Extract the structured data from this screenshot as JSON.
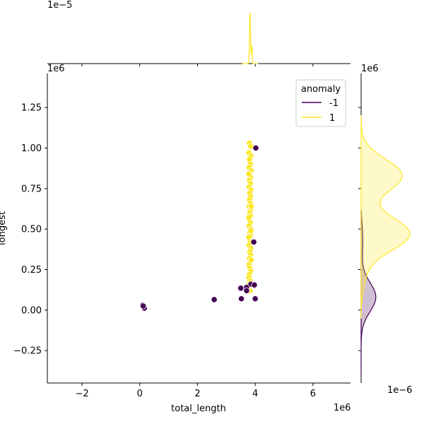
{
  "chart_data": {
    "type": "scatter",
    "subtype": "jointplot",
    "xlabel": "total_length",
    "ylabel": "longest",
    "x_offset_text": "1e6",
    "y_offset_text": "1e6",
    "top_marginal_offset_text": "1e−5",
    "right_marginal_offset_text": "1e6",
    "right_marginal_x_offset_text": "1e−6",
    "xlim": [
      -3.2,
      7.3
    ],
    "ylim": [
      -0.45,
      1.46
    ],
    "xticks": [
      -2,
      0,
      2,
      4,
      6
    ],
    "xtick_labels": [
      "−2",
      "0",
      "2",
      "4",
      "6"
    ],
    "yticks": [
      -0.25,
      0.0,
      0.25,
      0.5,
      0.75,
      1.0,
      1.25
    ],
    "ytick_labels": [
      "−0.25",
      "0.00",
      "0.25",
      "0.50",
      "0.75",
      "1.00",
      "1.25"
    ],
    "legend": {
      "title": "anomaly",
      "placement": "top-right",
      "entries": [
        {
          "label": "-1",
          "color": "#440154"
        },
        {
          "label": "1",
          "color": "#fde725"
        }
      ]
    },
    "colors": {
      "anomaly_-1": "#440154",
      "anomaly_1": "#fde725"
    },
    "series": [
      {
        "name": "1",
        "color": "#fde725",
        "points": [
          [
            3.8,
            1.03
          ],
          [
            3.84,
            1.01
          ],
          [
            3.78,
            0.97
          ],
          [
            3.85,
            0.95
          ],
          [
            3.8,
            0.93
          ],
          [
            3.83,
            0.9
          ],
          [
            3.79,
            0.88
          ],
          [
            3.86,
            0.86
          ],
          [
            3.81,
            0.84
          ],
          [
            3.84,
            0.82
          ],
          [
            3.8,
            0.8
          ],
          [
            3.83,
            0.78
          ],
          [
            3.79,
            0.76
          ],
          [
            3.85,
            0.74
          ],
          [
            3.81,
            0.72
          ],
          [
            3.84,
            0.7
          ],
          [
            3.8,
            0.68
          ],
          [
            3.83,
            0.66
          ],
          [
            3.79,
            0.64
          ],
          [
            3.85,
            0.62
          ],
          [
            3.81,
            0.6
          ],
          [
            3.84,
            0.58
          ],
          [
            3.8,
            0.56
          ],
          [
            3.83,
            0.54
          ],
          [
            3.79,
            0.52
          ],
          [
            3.85,
            0.5
          ],
          [
            3.81,
            0.48
          ],
          [
            3.84,
            0.46
          ],
          [
            3.8,
            0.44
          ],
          [
            3.83,
            0.42
          ],
          [
            3.79,
            0.4
          ],
          [
            3.85,
            0.38
          ],
          [
            3.81,
            0.36
          ],
          [
            3.84,
            0.34
          ],
          [
            3.8,
            0.32
          ],
          [
            3.83,
            0.3
          ],
          [
            3.79,
            0.28
          ],
          [
            3.81,
            0.26
          ],
          [
            3.84,
            0.24
          ],
          [
            3.8,
            0.22
          ],
          [
            3.78,
            0.2
          ],
          [
            3.82,
            0.18
          ],
          [
            3.79,
            0.16
          ],
          [
            3.85,
            0.49
          ],
          [
            3.78,
            0.57
          ],
          [
            3.86,
            0.64
          ],
          [
            3.78,
            0.84
          ],
          [
            3.86,
            0.31
          ],
          [
            3.78,
            0.45
          ],
          [
            3.82,
            0.12
          ],
          [
            3.77,
            0.14
          ]
        ]
      },
      {
        "name": "-1",
        "color": "#440154",
        "points": [
          [
            4.02,
            1.0
          ],
          [
            3.95,
            0.42
          ],
          [
            3.85,
            0.16
          ],
          [
            3.97,
            0.155
          ],
          [
            3.7,
            0.14
          ],
          [
            3.5,
            0.135
          ],
          [
            3.7,
            0.12
          ],
          [
            3.52,
            0.07
          ],
          [
            4.0,
            0.07
          ],
          [
            2.58,
            0.065
          ],
          [
            0.1,
            0.03
          ],
          [
            0.14,
            0.02
          ],
          [
            0.16,
            0.012
          ],
          [
            0.12,
            0.025
          ]
        ]
      }
    ],
    "top_marginal": {
      "description": "KDE of total_length by anomaly",
      "series": [
        {
          "name": "1",
          "color": "#fde725",
          "peak_x": 3.82,
          "peak_density": 0.000135
        },
        {
          "name": "-1",
          "color": "#440154",
          "peak_x": 3.8,
          "peak_density": 2e-07
        }
      ]
    },
    "right_marginal": {
      "description": "KDE of longest by anomaly",
      "series": [
        {
          "name": "1",
          "color": "#fde725",
          "filled": true,
          "modes": [
            {
              "y": 0.47,
              "density": 1.72
            },
            {
              "y": 0.83,
              "density": 1.45
            }
          ]
        },
        {
          "name": "-1",
          "color": "#440154",
          "filled": true,
          "modes": [
            {
              "y": 0.08,
              "density": 0.52
            }
          ]
        }
      ]
    }
  }
}
